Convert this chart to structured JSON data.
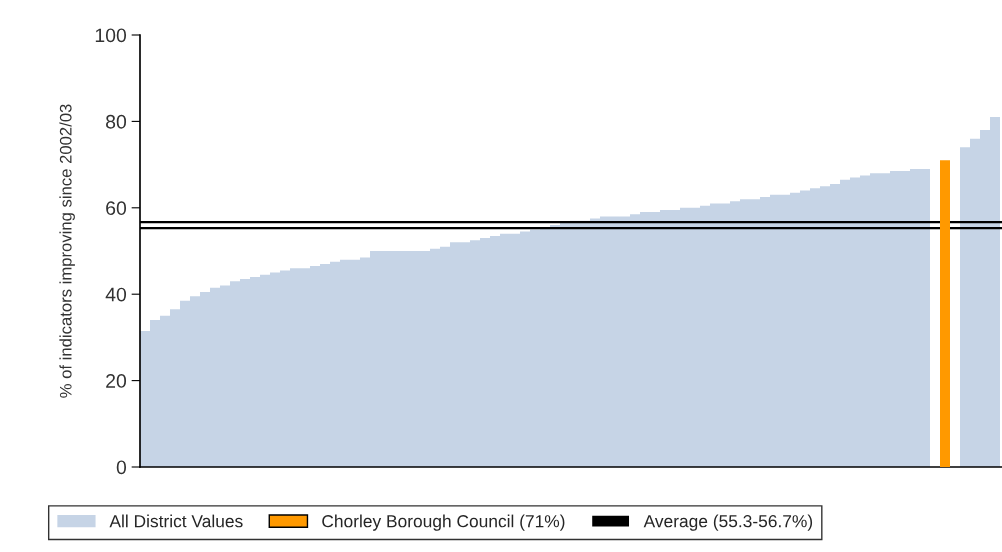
{
  "chart_data": {
    "type": "bar",
    "ylabel": "% of indicators improving since 2002/03",
    "categories": [
      null,
      null,
      null,
      null,
      null,
      null,
      null,
      null,
      null,
      null,
      null,
      null,
      null,
      null,
      null,
      null,
      null,
      null,
      null,
      null,
      null,
      null,
      null,
      null,
      null,
      null,
      null,
      null,
      null,
      null,
      null,
      null,
      null,
      null,
      null,
      null,
      null,
      null,
      null,
      null,
      null,
      null,
      null,
      null,
      null,
      null,
      null,
      null,
      null,
      null,
      null,
      null,
      null,
      null,
      null,
      null,
      null,
      null,
      null,
      null,
      null,
      null,
      null,
      null,
      null,
      null,
      null,
      null,
      null,
      null,
      null,
      null,
      null,
      null,
      null,
      null,
      null,
      null,
      null,
      null,
      null,
      null,
      null,
      null,
      null,
      null
    ],
    "series": [
      {
        "name": "All District Values",
        "color": "#c6d4e6",
        "values": [
          31.5,
          34,
          35,
          36.5,
          38.5,
          39.5,
          40.5,
          41.5,
          42,
          43,
          43.5,
          44,
          44.5,
          45,
          45.5,
          46,
          46,
          46.5,
          47,
          47.5,
          48,
          48,
          48.5,
          50,
          50,
          50,
          50,
          50,
          50,
          50.5,
          51,
          52,
          52,
          52.5,
          53,
          53.5,
          54,
          54,
          54.5,
          55,
          55.5,
          56,
          56.5,
          57,
          57,
          57.5,
          58,
          58,
          58,
          58.5,
          59,
          59,
          59.5,
          59.5,
          60,
          60,
          60.5,
          61,
          61,
          61.5,
          62,
          62,
          62.5,
          63,
          63,
          63.5,
          64,
          64.5,
          65,
          65.5,
          66.5,
          67,
          67.5,
          68,
          68,
          68.5,
          68.5,
          69,
          69,
          null,
          null,
          null,
          74,
          76,
          78,
          81
        ]
      },
      {
        "name": "Chorley Borough Council (71%)",
        "color": "#ff9900",
        "values": [
          null,
          null,
          null,
          null,
          null,
          null,
          null,
          null,
          null,
          null,
          null,
          null,
          null,
          null,
          null,
          null,
          null,
          null,
          null,
          null,
          null,
          null,
          null,
          null,
          null,
          null,
          null,
          null,
          null,
          null,
          null,
          null,
          null,
          null,
          null,
          null,
          null,
          null,
          null,
          null,
          null,
          null,
          null,
          null,
          null,
          null,
          null,
          null,
          null,
          null,
          null,
          null,
          null,
          null,
          null,
          null,
          null,
          null,
          null,
          null,
          null,
          null,
          null,
          null,
          null,
          null,
          null,
          null,
          null,
          null,
          null,
          null,
          null,
          null,
          null,
          null,
          null,
          null,
          null,
          null,
          71,
          null,
          null,
          null,
          null,
          null
        ]
      }
    ],
    "ref_lines": [
      {
        "axis": "y",
        "value": 56.7,
        "label": "Average (55.3-56.7%)",
        "color": "#000000"
      },
      {
        "axis": "y",
        "value": 55.3,
        "label": null,
        "color": "#000000"
      }
    ],
    "ylim": [
      0,
      100
    ],
    "yticks": [
      0,
      20,
      40,
      60,
      80,
      100
    ],
    "tick_labels": "y",
    "grid": false,
    "legend": "bottom"
  }
}
